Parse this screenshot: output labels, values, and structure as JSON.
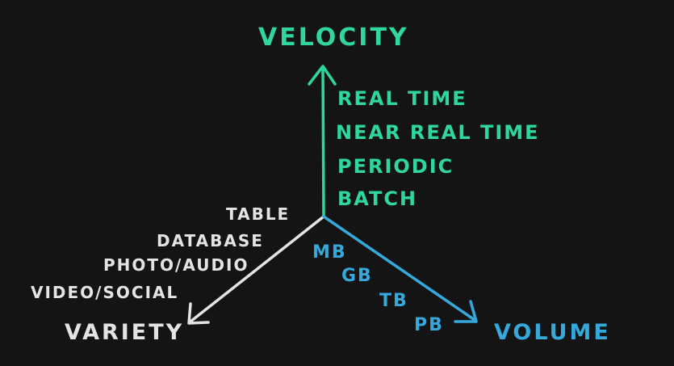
{
  "velocity": {
    "title": "VELOCITY",
    "color": "#2fd6a0",
    "items": [
      "REAL TIME",
      "NEAR REAL TIME",
      "PERIODIC",
      "BATCH"
    ]
  },
  "variety": {
    "title": "VARIETY",
    "color": "#e4e4e4",
    "items": [
      "TABLE",
      "DATABASE",
      "PHOTO/AUDIO",
      "VIDEO/SOCIAL"
    ]
  },
  "volume": {
    "title": "VOLUME",
    "color": "#35a9dc",
    "items": [
      "MB",
      "GB",
      "TB",
      "PB"
    ]
  }
}
